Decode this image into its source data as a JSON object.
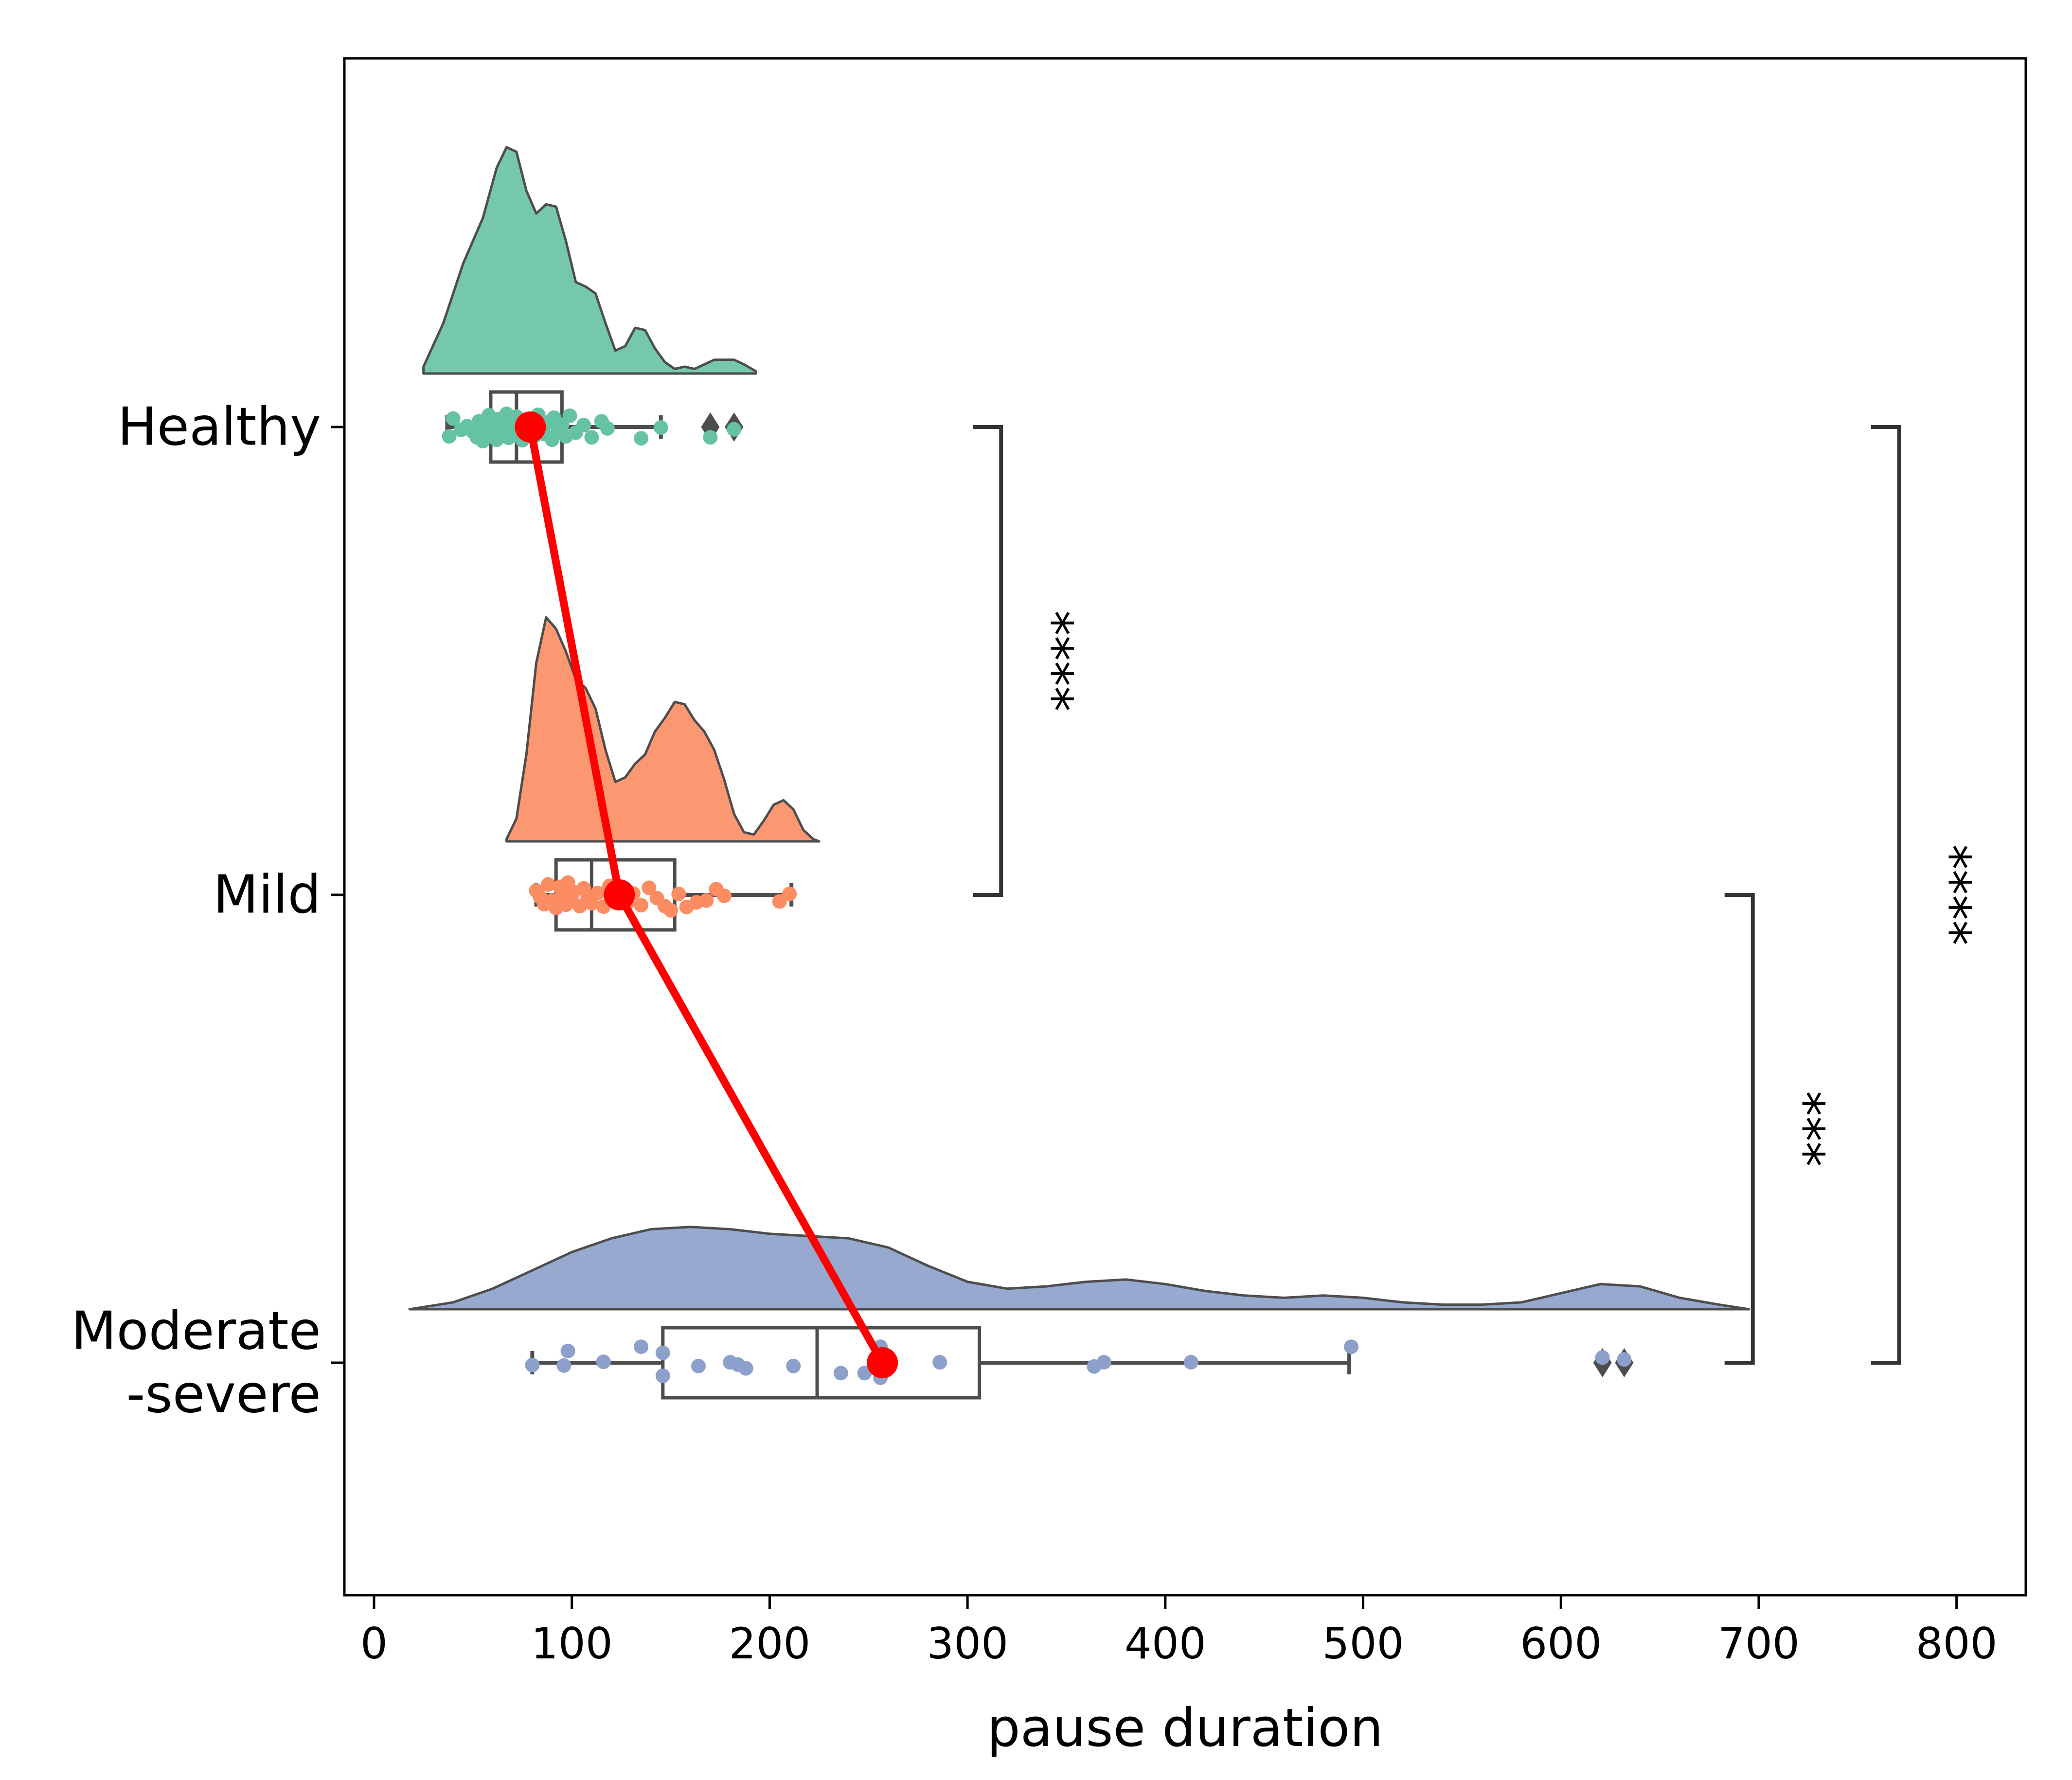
{
  "chart_data": {
    "type": "raincloud",
    "orientation": "horizontal",
    "xlabel": "pause duration",
    "xlim": [
      -15,
      835
    ],
    "xticks": [
      0,
      100,
      200,
      300,
      400,
      500,
      600,
      700,
      800
    ],
    "categories": [
      "Healthy",
      "Mild",
      "Moderate\n-severe"
    ],
    "category_labels": [
      [
        "Healthy"
      ],
      [
        "Mild"
      ],
      [
        "Moderate",
        "-severe"
      ]
    ],
    "colors": {
      "Healthy": "#66c2a5",
      "Mild": "#fc8d62",
      "Moderate\n-severe": "#8da0cb",
      "mean_line": "#ff0000",
      "box": "#4d4d4d"
    },
    "grid": false,
    "groups": [
      {
        "name": "Healthy",
        "density_x": [
          25,
          35,
          45,
          55,
          62,
          67,
          72,
          77,
          82,
          87,
          92,
          97,
          102,
          107,
          112,
          117,
          122,
          127,
          132,
          137,
          142,
          147,
          152,
          157,
          162,
          167,
          172,
          177,
          182,
          187,
          193
        ],
        "density_y": [
          0.03,
          0.22,
          0.48,
          0.68,
          0.9,
          0.99,
          0.97,
          0.8,
          0.7,
          0.74,
          0.73,
          0.58,
          0.4,
          0.38,
          0.35,
          0.22,
          0.1,
          0.12,
          0.2,
          0.19,
          0.11,
          0.05,
          0.02,
          0.03,
          0.02,
          0.04,
          0.06,
          0.06,
          0.06,
          0.04,
          0.01
        ],
        "box": {
          "whisker_low": 37,
          "q1": 59,
          "median": 72,
          "q3": 95,
          "whisker_high": 145
        },
        "fliers": [
          170,
          182
        ],
        "mean": 79,
        "points": [
          [
            38,
            0.2
          ],
          [
            40,
            -0.18
          ],
          [
            44,
            0.06
          ],
          [
            47,
            -0.02
          ],
          [
            50,
            0.1
          ],
          [
            52,
            0.22
          ],
          [
            53,
            -0.12
          ],
          [
            55,
            0.3
          ],
          [
            56,
            0.02
          ],
          [
            58,
            -0.25
          ],
          [
            58,
            0.18
          ],
          [
            60,
            0.07
          ],
          [
            61,
            -0.06
          ],
          [
            62,
            0.27
          ],
          [
            63,
            -0.17
          ],
          [
            65,
            0.12
          ],
          [
            66,
            0.01
          ],
          [
            67,
            -0.28
          ],
          [
            68,
            0.23
          ],
          [
            70,
            -0.09
          ],
          [
            71,
            0.16
          ],
          [
            72,
            -0.22
          ],
          [
            73,
            0.05
          ],
          [
            75,
            0.28
          ],
          [
            76,
            -0.14
          ],
          [
            78,
            0.1
          ],
          [
            79,
            -0.03
          ],
          [
            81,
            0.2
          ],
          [
            83,
            -0.26
          ],
          [
            84,
            0.04
          ],
          [
            86,
            0.15
          ],
          [
            88,
            -0.1
          ],
          [
            90,
            0.27
          ],
          [
            91,
            -0.2
          ],
          [
            93,
            0.08
          ],
          [
            95,
            -0.05
          ],
          [
            97,
            0.2
          ],
          [
            99,
            -0.24
          ],
          [
            102,
            0.12
          ],
          [
            106,
            -0.04
          ],
          [
            110,
            0.22
          ],
          [
            115,
            -0.12
          ],
          [
            118,
            0.03
          ],
          [
            135,
            0.24
          ],
          [
            145,
            0.01
          ],
          [
            170,
            0.22
          ],
          [
            182,
            0.05
          ]
        ]
      },
      {
        "name": "Mild",
        "density_x": [
          67,
          72,
          77,
          82,
          87,
          92,
          97,
          102,
          107,
          112,
          117,
          122,
          127,
          132,
          137,
          142,
          147,
          152,
          157,
          162,
          167,
          172,
          177,
          182,
          187,
          192,
          197,
          202,
          207,
          212,
          217,
          222,
          225
        ],
        "density_y": [
          0.01,
          0.1,
          0.38,
          0.78,
          0.98,
          0.93,
          0.83,
          0.71,
          0.67,
          0.58,
          0.4,
          0.26,
          0.28,
          0.34,
          0.38,
          0.48,
          0.54,
          0.61,
          0.6,
          0.53,
          0.48,
          0.4,
          0.27,
          0.12,
          0.04,
          0.03,
          0.09,
          0.16,
          0.18,
          0.14,
          0.05,
          0.01,
          0.0
        ],
        "box": {
          "whisker_low": 82,
          "q1": 92,
          "median": 110,
          "q3": 152,
          "whisker_high": 211
        },
        "fliers": [],
        "mean": 124,
        "points": [
          [
            82,
            -0.09
          ],
          [
            84,
            0.05
          ],
          [
            86,
            0.2
          ],
          [
            88,
            -0.22
          ],
          [
            90,
            0.12
          ],
          [
            92,
            0.28
          ],
          [
            94,
            -0.17
          ],
          [
            95,
            0.02
          ],
          [
            97,
            0.21
          ],
          [
            98,
            -0.26
          ],
          [
            100,
            0.13
          ],
          [
            101,
            -0.06
          ],
          [
            104,
            0.24
          ],
          [
            106,
            -0.14
          ],
          [
            108,
            0.08
          ],
          [
            110,
            0.18
          ],
          [
            113,
            -0.04
          ],
          [
            116,
            0.25
          ],
          [
            119,
            -0.19
          ],
          [
            122,
            0.1
          ],
          [
            125,
            -0.1
          ],
          [
            128,
            0.17
          ],
          [
            131,
            -0.03
          ],
          [
            135,
            0.22
          ],
          [
            139,
            -0.15
          ],
          [
            143,
            0.07
          ],
          [
            147,
            0.24
          ],
          [
            150,
            0.33
          ],
          [
            154,
            -0.02
          ],
          [
            158,
            0.26
          ],
          [
            163,
            0.16
          ],
          [
            168,
            0.12
          ],
          [
            173,
            -0.12
          ],
          [
            177,
            0.02
          ],
          [
            205,
            0.14
          ],
          [
            210,
            -0.02
          ]
        ]
      },
      {
        "name": "Moderate\n-severe",
        "density_x": [
          18,
          40,
          60,
          80,
          100,
          120,
          140,
          160,
          180,
          200,
          220,
          240,
          260,
          280,
          300,
          320,
          340,
          360,
          380,
          400,
          420,
          440,
          460,
          480,
          500,
          520,
          540,
          560,
          580,
          600,
          620,
          640,
          660,
          680,
          695
        ],
        "density_y": [
          0.0,
          0.03,
          0.09,
          0.17,
          0.25,
          0.31,
          0.35,
          0.36,
          0.35,
          0.33,
          0.32,
          0.31,
          0.27,
          0.19,
          0.12,
          0.09,
          0.1,
          0.12,
          0.13,
          0.11,
          0.08,
          0.06,
          0.05,
          0.06,
          0.05,
          0.03,
          0.02,
          0.02,
          0.03,
          0.07,
          0.11,
          0.1,
          0.05,
          0.02,
          0.0
        ],
        "box": {
          "whisker_low": 80,
          "q1": 146,
          "median": 224,
          "q3": 306,
          "whisker_high": 493
        },
        "fliers": [
          621,
          632
        ],
        "mean": 257,
        "points": [
          [
            80,
            0.05
          ],
          [
            96,
            0.06
          ],
          [
            98,
            -0.25
          ],
          [
            116,
            -0.02
          ],
          [
            135,
            -0.34
          ],
          [
            146,
            0.28
          ],
          [
            146,
            -0.21
          ],
          [
            164,
            0.07
          ],
          [
            180,
            -0.01
          ],
          [
            184,
            0.04
          ],
          [
            188,
            0.12
          ],
          [
            212,
            0.07
          ],
          [
            236,
            0.22
          ],
          [
            248,
            0.22
          ],
          [
            256,
            0.32
          ],
          [
            256,
            -0.34
          ],
          [
            286,
            -0.01
          ],
          [
            364,
            0.08
          ],
          [
            369,
            -0.01
          ],
          [
            413,
            -0.01
          ],
          [
            494,
            -0.34
          ],
          [
            621,
            -0.11
          ],
          [
            632,
            -0.07
          ]
        ]
      }
    ],
    "mean_line": {
      "x": [
        79,
        124,
        257
      ]
    },
    "significance": [
      {
        "from": "Healthy",
        "to": "Mild",
        "label": "****",
        "x_bracket": 317
      },
      {
        "from": "Mild",
        "to": "Moderate\n-severe",
        "label": "***",
        "x_bracket": 697
      },
      {
        "from": "Healthy",
        "to": "Moderate\n-severe",
        "label": "****",
        "x_bracket": 771
      }
    ]
  }
}
